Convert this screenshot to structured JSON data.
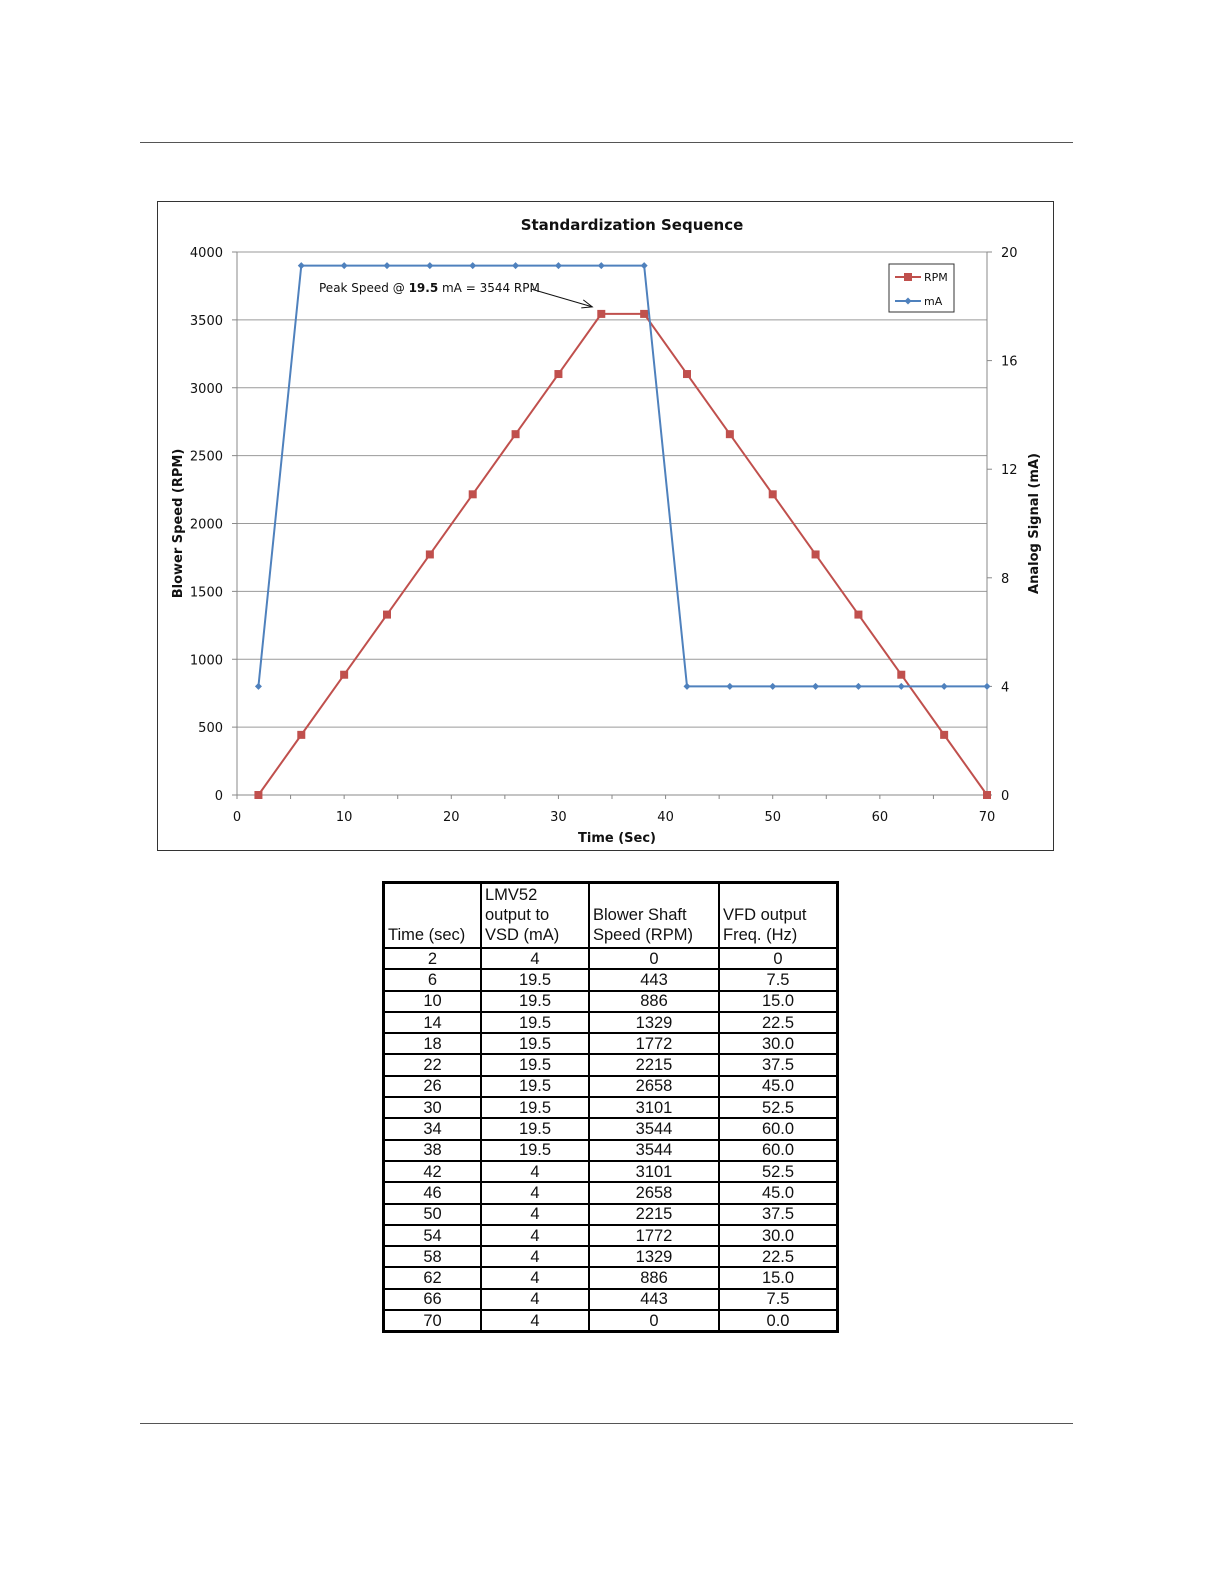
{
  "chart_data": {
    "type": "line",
    "title": "Standardization Sequence",
    "xlabel": "Time (Sec)",
    "ylabel_left": "Blower Speed (RPM)",
    "ylabel_right": "Analog Signal (mA)",
    "xlim": [
      0,
      70
    ],
    "ylim_left": [
      0,
      4000
    ],
    "ylim_right": [
      0,
      20
    ],
    "x_ticks": [
      0,
      10,
      20,
      30,
      40,
      50,
      60,
      70
    ],
    "y_left_ticks": [
      0,
      500,
      1000,
      1500,
      2000,
      2500,
      3000,
      3500,
      4000
    ],
    "y_right_ticks": [
      0,
      4,
      8,
      12,
      16,
      20
    ],
    "grid": true,
    "legend_position": "top-right",
    "x": [
      2,
      6,
      10,
      14,
      18,
      22,
      26,
      30,
      34,
      38,
      42,
      46,
      50,
      54,
      58,
      62,
      66,
      70
    ],
    "series": [
      {
        "name": "RPM",
        "axis": "left",
        "color": "#c0504d",
        "marker": "square",
        "values": [
          0,
          443,
          886,
          1329,
          1772,
          2215,
          2658,
          3101,
          3544,
          3544,
          3101,
          2658,
          2215,
          1772,
          1329,
          886,
          443,
          0
        ]
      },
      {
        "name": "mA",
        "axis": "right",
        "color": "#4f81bd",
        "marker": "diamond",
        "values": [
          4,
          19.5,
          19.5,
          19.5,
          19.5,
          19.5,
          19.5,
          19.5,
          19.5,
          19.5,
          4,
          4,
          4,
          4,
          4,
          4,
          4,
          4
        ]
      }
    ],
    "annotation": {
      "prefix": "Peak Speed @ ",
      "value": "19.5",
      "suffix": " mA = 3544 RPM",
      "point_x": 34,
      "point_y": 3544
    }
  },
  "table": {
    "headers": [
      [
        "",
        "",
        "Time (sec)"
      ],
      [
        "LMV52",
        "output to",
        "VSD (mA)"
      ],
      [
        "",
        "Blower Shaft",
        "Speed (RPM)"
      ],
      [
        "",
        "VFD output",
        "Freq. (Hz)"
      ]
    ],
    "rows": [
      [
        "2",
        "4",
        "0",
        "0"
      ],
      [
        "6",
        "19.5",
        "443",
        "7.5"
      ],
      [
        "10",
        "19.5",
        "886",
        "15.0"
      ],
      [
        "14",
        "19.5",
        "1329",
        "22.5"
      ],
      [
        "18",
        "19.5",
        "1772",
        "30.0"
      ],
      [
        "22",
        "19.5",
        "2215",
        "37.5"
      ],
      [
        "26",
        "19.5",
        "2658",
        "45.0"
      ],
      [
        "30",
        "19.5",
        "3101",
        "52.5"
      ],
      [
        "34",
        "19.5",
        "3544",
        "60.0"
      ],
      [
        "38",
        "19.5",
        "3544",
        "60.0"
      ],
      [
        "42",
        "4",
        "3101",
        "52.5"
      ],
      [
        "46",
        "4",
        "2658",
        "45.0"
      ],
      [
        "50",
        "4",
        "2215",
        "37.5"
      ],
      [
        "54",
        "4",
        "1772",
        "30.0"
      ],
      [
        "58",
        "4",
        "1329",
        "22.5"
      ],
      [
        "62",
        "4",
        "886",
        "15.0"
      ],
      [
        "66",
        "4",
        "443",
        "7.5"
      ],
      [
        "70",
        "4",
        "0",
        "0.0"
      ]
    ]
  }
}
